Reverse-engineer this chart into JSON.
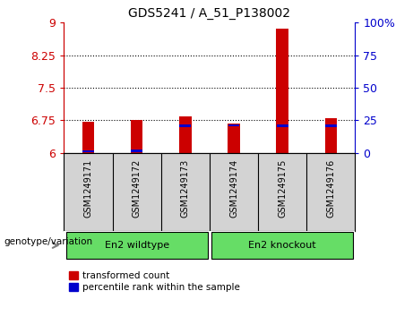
{
  "title": "GDS5241 / A_51_P138002",
  "samples": [
    "GSM1249171",
    "GSM1249172",
    "GSM1249173",
    "GSM1249174",
    "GSM1249175",
    "GSM1249176"
  ],
  "red_values": [
    6.72,
    6.75,
    6.83,
    6.67,
    8.87,
    6.79
  ],
  "blue_values": [
    6.03,
    6.04,
    6.62,
    6.63,
    6.62,
    6.62
  ],
  "ylim_left": [
    6.0,
    9.0
  ],
  "ylim_right": [
    0,
    100
  ],
  "yticks_left": [
    6.0,
    6.75,
    7.5,
    8.25,
    9.0
  ],
  "ytick_labels_left": [
    "6",
    "6.75",
    "7.5",
    "8.25",
    "9"
  ],
  "yticks_right": [
    0,
    25,
    50,
    75,
    100
  ],
  "ytick_labels_right": [
    "0",
    "25",
    "50",
    "75",
    "100%"
  ],
  "baseline": 6.0,
  "dotted_lines": [
    6.75,
    7.5,
    8.25
  ],
  "groups": [
    {
      "label": "En2 wildtype",
      "indices": [
        0,
        1,
        2
      ]
    },
    {
      "label": "En2 knockout",
      "indices": [
        3,
        4,
        5
      ]
    }
  ],
  "group_label_prefix": "genotype/variation",
  "legend_items": [
    {
      "color": "#CC0000",
      "label": "transformed count"
    },
    {
      "color": "#0000CC",
      "label": "percentile rank within the sample"
    }
  ],
  "bar_width": 0.25,
  "red_color": "#CC0000",
  "blue_color": "#0000CC",
  "left_axis_color": "#CC0000",
  "right_axis_color": "#0000CC",
  "bg_sample_area": "#d3d3d3",
  "group_box_color": "#66DD66",
  "font_size": 9,
  "sample_font_size": 7,
  "group_font_size": 8
}
